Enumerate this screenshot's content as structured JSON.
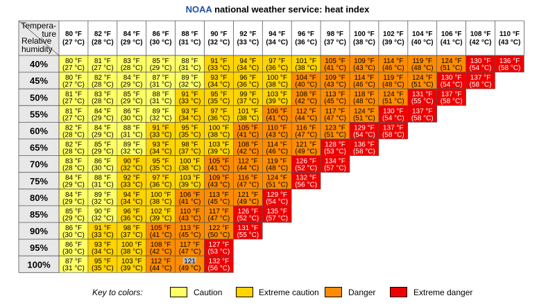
{
  "title": {
    "brand": "NOAA",
    "rest": " national weather service: heat index"
  },
  "header": {
    "temperature_label": "Tempera-\nture",
    "humidity_label": "Relative\nhumidity"
  },
  "key": {
    "label": "Key to colors:"
  },
  "colors": {
    "caution": "#ffff66",
    "extreme_caution": "#ffd400",
    "danger": "#ff8c00",
    "extreme_danger": "#ee0000",
    "grid": "#555555"
  },
  "chart_data": {
    "type": "table",
    "title": "NOAA national weather service: heat index",
    "columns": [
      "80 °F\n(27 °C)",
      "82 °F\n(28 °C)",
      "84 °F\n(29 °C)",
      "86 °F\n(30 °C)",
      "88 °F\n(31 °C)",
      "90 °F\n(32 °C)",
      "92 °F\n(33 °C)",
      "94 °F\n(34 °C)",
      "96 °F\n(36 °C)",
      "98 °F\n(37 °C)",
      "100 °F\n(38 °C)",
      "102 °F\n(39 °C)",
      "104 °F\n(40 °C)",
      "106 °F\n(41 °C)",
      "108 °F\n(42 °C)",
      "110 °F\n(43 °C)"
    ],
    "rows": [
      "40%",
      "45%",
      "50%",
      "55%",
      "60%",
      "65%",
      "70%",
      "75%",
      "80%",
      "85%",
      "90%",
      "95%",
      "100%"
    ],
    "values": [
      [
        [
          "80 °F",
          "(27 °C)",
          1
        ],
        [
          "81 °F",
          "(27 °C)",
          1
        ],
        [
          "83 °F",
          "(28 °C)",
          1
        ],
        [
          "85 °F",
          "(29 °C)",
          1
        ],
        [
          "88 °F",
          "(31 °C)",
          1
        ],
        [
          "91 °F",
          "(33 °C)",
          2
        ],
        [
          "94 °F",
          "(34 °C)",
          2
        ],
        [
          "97 °F",
          "(36 °C)",
          2
        ],
        [
          "101 °F",
          "(38 °C)",
          2
        ],
        [
          "105 °F",
          "(41 °C)",
          3
        ],
        [
          "109 °F",
          "(43 °C)",
          3
        ],
        [
          "114 °F",
          "(46 °C)",
          3
        ],
        [
          "119 °F",
          "(48 °C)",
          3
        ],
        [
          "124 °F",
          "(51 °C)",
          3
        ],
        [
          "130 °F",
          "(54 °C)",
          4
        ],
        [
          "136 °F",
          "(58 °C)",
          4
        ]
      ],
      [
        [
          "80 °F",
          "(27 °C)",
          1
        ],
        [
          "82 °F",
          "(28 °C)",
          1
        ],
        [
          "84 °F",
          "(29 °C)",
          1
        ],
        [
          "87 °F",
          "(31 °C)",
          1
        ],
        [
          "89 °F",
          "(32 °C)",
          1
        ],
        [
          "93 °F",
          "(34 °C)",
          2
        ],
        [
          "96 °F",
          "(36 °C)",
          2
        ],
        [
          "100 °F",
          "(38 °C)",
          2
        ],
        [
          "104 °F",
          "(40 °C)",
          3
        ],
        [
          "109 °F",
          "(43 °C)",
          3
        ],
        [
          "114 °F",
          "(46 °C)",
          3
        ],
        [
          "119 °F",
          "(48 °C)",
          3
        ],
        [
          "124 °F",
          "(51 °C)",
          3
        ],
        [
          "130 °F",
          "(54 °C)",
          4
        ],
        [
          "137 °F",
          "(58 °C)",
          4
        ],
        null
      ],
      [
        [
          "81 °F",
          "(27 °C)",
          1
        ],
        [
          "83 °F",
          "(28 °C)",
          1
        ],
        [
          "85 °F",
          "(29 °C)",
          1
        ],
        [
          "88 °F",
          "(31 °C)",
          1
        ],
        [
          "91 °F",
          "(33 °C)",
          2
        ],
        [
          "95 °F",
          "(35 °C)",
          2
        ],
        [
          "99 °F",
          "(37 °C)",
          2
        ],
        [
          "103 °F",
          "(39 °C)",
          2
        ],
        [
          "108 °F",
          "(42 °C)",
          3
        ],
        [
          "113 °F",
          "(45 °C)",
          3
        ],
        [
          "118 °F",
          "(48 °C)",
          3
        ],
        [
          "124 °F",
          "(51 °C)",
          3
        ],
        [
          "131 °F",
          "(55 °C)",
          4
        ],
        [
          "137 °F",
          "(58 °C)",
          4
        ],
        null,
        null
      ],
      [
        [
          "81 °F",
          "(27 °C)",
          1
        ],
        [
          "84 °F",
          "(29 °C)",
          1
        ],
        [
          "86 °F",
          "(30 °C)",
          1
        ],
        [
          "89 °F",
          "(32 °C)",
          1
        ],
        [
          "93 °F",
          "(34 °C)",
          2
        ],
        [
          "97 °F",
          "(36 °C)",
          2
        ],
        [
          "101 °F",
          "(38 °C)",
          2
        ],
        [
          "106 °F",
          "(41 °C)",
          3
        ],
        [
          "112 °F",
          "(44 °C)",
          3
        ],
        [
          "117 °F",
          "(47 °C)",
          3
        ],
        [
          "124 °F",
          "(51 °C)",
          3
        ],
        [
          "130 °F",
          "(54 °C)",
          4
        ],
        [
          "137 °F",
          "(58 °C)",
          4
        ],
        null,
        null,
        null
      ],
      [
        [
          "82 °F",
          "(28 °C)",
          1
        ],
        [
          "84 °F",
          "(29 °C)",
          1
        ],
        [
          "88 °F",
          "(31 °C)",
          1
        ],
        [
          "91 °F",
          "(33 °C)",
          2
        ],
        [
          "95 °F",
          "(35 °C)",
          2
        ],
        [
          "100 °F",
          "(38 °C)",
          2
        ],
        [
          "105 °F",
          "(41 °C)",
          3
        ],
        [
          "110 °F",
          "(43 °C)",
          3
        ],
        [
          "116 °F",
          "(47 °C)",
          3
        ],
        [
          "123 °F",
          "(51 °C)",
          3
        ],
        [
          "129 °F",
          "(54 °C)",
          4
        ],
        [
          "137 °F",
          "(58 °C)",
          4
        ],
        null,
        null,
        null,
        null
      ],
      [
        [
          "82 °F",
          "(28 °C)",
          1
        ],
        [
          "85 °F",
          "(29 °C)",
          1
        ],
        [
          "89 °F",
          "(32 °C)",
          1
        ],
        [
          "93 °F",
          "(34 °C)",
          2
        ],
        [
          "98 °F",
          "(37 °C)",
          2
        ],
        [
          "103 °F",
          "(39 °C)",
          2
        ],
        [
          "108 °F",
          "(42 °C)",
          3
        ],
        [
          "114 °F",
          "(46 °C)",
          3
        ],
        [
          "121 °F",
          "(49 °C)",
          3
        ],
        [
          "128 °F",
          "(53 °C)",
          4
        ],
        [
          "136 °F",
          "(58 °C)",
          4
        ],
        null,
        null,
        null,
        null,
        null
      ],
      [
        [
          "83 °F",
          "(28 °C)",
          1
        ],
        [
          "86 °F",
          "(30 °C)",
          1
        ],
        [
          "90 °F",
          "(32 °C)",
          2
        ],
        [
          "95 °F",
          "(35 °C)",
          2
        ],
        [
          "100 °F",
          "(38 °C)",
          2
        ],
        [
          "105 °F",
          "(41 °C)",
          3
        ],
        [
          "112 °F",
          "(44 °C)",
          3
        ],
        [
          "119 °F",
          "(48 °C)",
          3
        ],
        [
          "126 °F",
          "(52 °C)",
          4
        ],
        [
          "134 °F",
          "(57 °C)",
          4
        ],
        null,
        null,
        null,
        null,
        null,
        null
      ],
      [
        [
          "84 °F",
          "(29 °C)",
          1
        ],
        [
          "88 °F",
          "(31 °C)",
          1
        ],
        [
          "92 °F",
          "(33 °C)",
          2
        ],
        [
          "97 °F",
          "(36 °C)",
          2
        ],
        [
          "103 °F",
          "(39 °C)",
          2
        ],
        [
          "109 °F",
          "(43 °C)",
          3
        ],
        [
          "116 °F",
          "(47 °C)",
          3
        ],
        [
          "124 °F",
          "(51 °C)",
          3
        ],
        [
          "132 °F",
          "(56 °C)",
          4
        ],
        null,
        null,
        null,
        null,
        null,
        null,
        null
      ],
      [
        [
          "84 °F",
          "(29 °C)",
          1
        ],
        [
          "89 °F",
          "(32 °C)",
          1
        ],
        [
          "94 °F",
          "(34 °C)",
          2
        ],
        [
          "100 °F",
          "(38 °C)",
          2
        ],
        [
          "106 °F",
          "(41 °C)",
          3
        ],
        [
          "113 °F",
          "(45 °C)",
          3
        ],
        [
          "121 °F",
          "(49 °C)",
          3
        ],
        [
          "129 °F",
          "(54 °C)",
          4
        ],
        null,
        null,
        null,
        null,
        null,
        null,
        null,
        null
      ],
      [
        [
          "85 °F",
          "(29 °C)",
          1
        ],
        [
          "90 °F",
          "(32 °C)",
          1
        ],
        [
          "96 °F",
          "(36 °C)",
          2
        ],
        [
          "102 °F",
          "(39 °C)",
          2
        ],
        [
          "110 °F",
          "(43 °C)",
          3
        ],
        [
          "117 °F",
          "(47 °C)",
          3
        ],
        [
          "126 °F",
          "(52 °C)",
          4
        ],
        [
          "135 °F",
          "(57 °C)",
          4
        ],
        null,
        null,
        null,
        null,
        null,
        null,
        null,
        null
      ],
      [
        [
          "86 °F",
          "(30 °C)",
          1
        ],
        [
          "91 °F",
          "(33 °C)",
          2
        ],
        [
          "98 °F",
          "(37 °C)",
          2
        ],
        [
          "105 °F",
          "(41 °C)",
          3
        ],
        [
          "113 °F",
          "(45 °C)",
          3
        ],
        [
          "122 °F",
          "(50 °C)",
          3
        ],
        [
          "131 °F",
          "(55 °C)",
          4
        ],
        null,
        null,
        null,
        null,
        null,
        null,
        null,
        null,
        null
      ],
      [
        [
          "86 °F",
          "(30 °C)",
          1
        ],
        [
          "93 °F",
          "(34 °C)",
          2
        ],
        [
          "100 °F",
          "(38 °C)",
          2
        ],
        [
          "108 °F",
          "(42 °C)",
          3
        ],
        [
          "117 °F",
          "(47 °C)",
          3
        ],
        [
          "127 °F",
          "(53 °C)",
          4
        ],
        null,
        null,
        null,
        null,
        null,
        null,
        null,
        null,
        null,
        null
      ],
      [
        [
          "87 °F",
          "(31 °C)",
          1
        ],
        [
          "95 °F",
          "(35 °C)",
          2
        ],
        [
          "103 °F",
          "(39 °C)",
          2
        ],
        [
          "112 °F",
          "(44 °C)",
          3
        ],
        [
          "121",
          "(49 °C)",
          3
        ],
        [
          "132 °F",
          "(56 °C)",
          4
        ],
        null,
        null,
        null,
        null,
        null,
        null,
        null,
        null,
        null,
        null
      ]
    ],
    "legend": [
      "Caution",
      "Extreme caution",
      "Danger",
      "Extreme danger"
    ]
  }
}
